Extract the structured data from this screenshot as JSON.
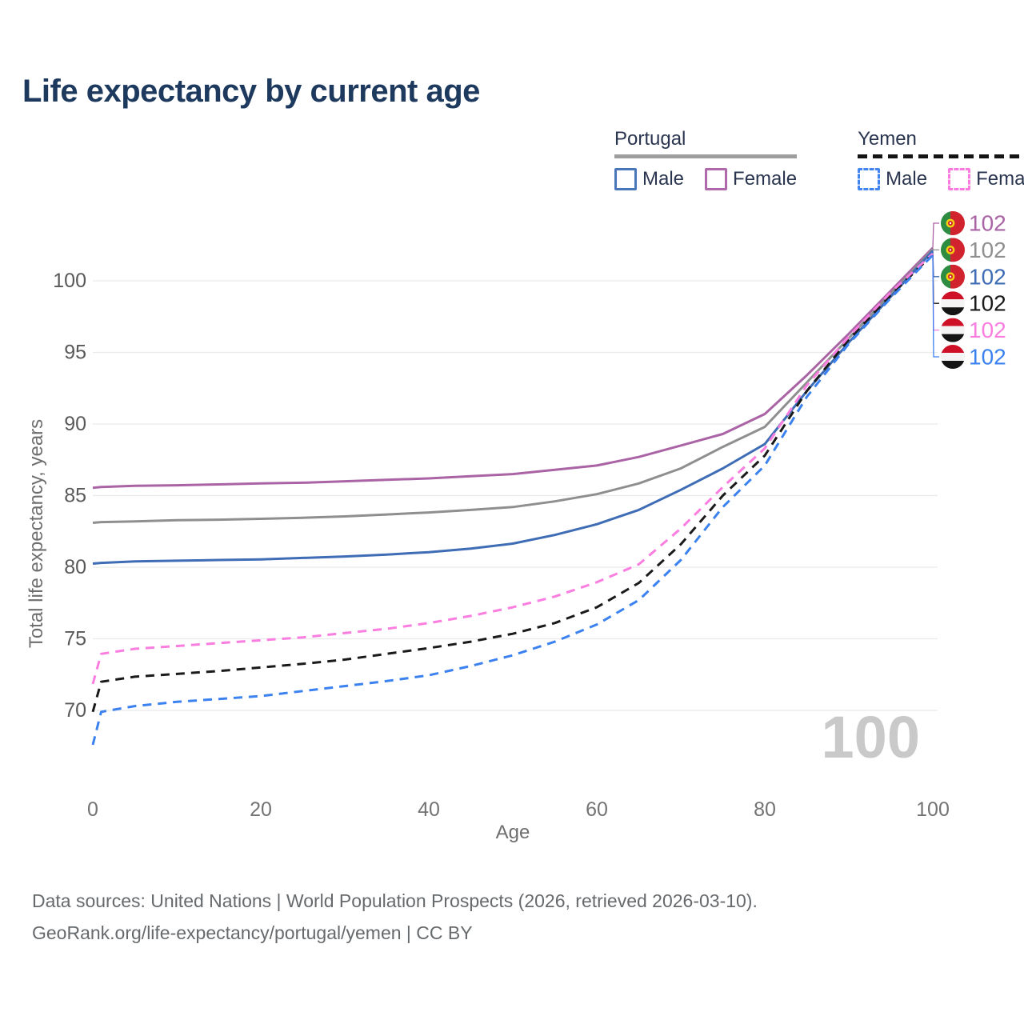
{
  "title": "Life expectancy by current age",
  "watermark": "100",
  "legend": {
    "groups": [
      {
        "label": "Portugal",
        "line_style": "solid",
        "underline_color": "#9e9e9e",
        "items": [
          {
            "label": "Male",
            "color": "#4a77b9",
            "dashed": false
          },
          {
            "label": "Female",
            "color": "#b069ab",
            "dashed": false
          }
        ]
      },
      {
        "label": "Yemen",
        "line_style": "dashed",
        "underline_color": "#141414",
        "items": [
          {
            "label": "Male",
            "color": "#4285f0",
            "dashed": true
          },
          {
            "label": "Female",
            "color": "#fb7ae0",
            "dashed": true
          }
        ]
      }
    ]
  },
  "chart_data": {
    "type": "line",
    "title": "Life expectancy by current age",
    "xlabel": "Age",
    "ylabel": "Total life expectancy, years",
    "xlim": [
      0,
      100
    ],
    "ylim": [
      67,
      103
    ],
    "x_ticks": [
      0,
      20,
      40,
      60,
      80,
      100
    ],
    "y_ticks": [
      70,
      75,
      80,
      85,
      90,
      95,
      100
    ],
    "grid": "horizontal-only",
    "legend_position": "top-right",
    "x": [
      0,
      1,
      5,
      10,
      15,
      20,
      25,
      30,
      35,
      40,
      45,
      50,
      55,
      60,
      65,
      70,
      75,
      80,
      85,
      90,
      95,
      100
    ],
    "series": [
      {
        "name": "Portugal Female",
        "country": "Portugal",
        "sex": "Female",
        "flag": "portugal",
        "color": "#aa63a5",
        "dash": false,
        "end_label": "102",
        "values": [
          85.55,
          85.6,
          85.68,
          85.72,
          85.78,
          85.85,
          85.9,
          86.0,
          86.1,
          86.2,
          86.35,
          86.5,
          86.8,
          87.1,
          87.7,
          88.5,
          89.3,
          90.7,
          93.4,
          96.3,
          99.3,
          102.3
        ]
      },
      {
        "name": "Portugal Both sexes",
        "country": "Portugal",
        "sex": "Both",
        "flag": "portugal",
        "color": "#8f8f8f",
        "dash": false,
        "end_label": "102",
        "values": [
          83.1,
          83.15,
          83.2,
          83.28,
          83.32,
          83.38,
          83.45,
          83.55,
          83.68,
          83.82,
          84.0,
          84.2,
          84.6,
          85.1,
          85.85,
          86.9,
          88.4,
          89.8,
          92.9,
          96.0,
          99.1,
          102.2
        ]
      },
      {
        "name": "Portugal Male",
        "country": "Portugal",
        "sex": "Male",
        "flag": "portugal",
        "color": "#3e6cb5",
        "dash": false,
        "end_label": "102",
        "values": [
          80.25,
          80.3,
          80.4,
          80.45,
          80.5,
          80.55,
          80.65,
          80.75,
          80.88,
          81.05,
          81.3,
          81.65,
          82.25,
          83.0,
          84.0,
          85.4,
          86.9,
          88.6,
          92.3,
          95.7,
          98.9,
          102.1
        ]
      },
      {
        "name": "Yemen Both sexes",
        "country": "Yemen",
        "sex": "Both",
        "flag": "yemen",
        "color": "#1a1a1a",
        "dash": true,
        "end_label": "102",
        "values": [
          69.9,
          72.0,
          72.35,
          72.55,
          72.75,
          73.0,
          73.25,
          73.55,
          73.95,
          74.35,
          74.8,
          75.35,
          76.1,
          77.2,
          78.9,
          81.6,
          85.0,
          87.8,
          92.3,
          95.9,
          99.0,
          101.85
        ]
      },
      {
        "name": "Yemen Female",
        "country": "Yemen",
        "sex": "Female",
        "flag": "yemen",
        "color": "#f97ee0",
        "dash": true,
        "end_label": "102",
        "values": [
          71.85,
          73.95,
          74.3,
          74.5,
          74.7,
          74.9,
          75.1,
          75.4,
          75.7,
          76.1,
          76.6,
          77.2,
          77.95,
          78.95,
          80.2,
          82.7,
          85.6,
          88.3,
          92.7,
          96.1,
          99.2,
          101.9
        ]
      },
      {
        "name": "Yemen Male",
        "country": "Yemen",
        "sex": "Male",
        "flag": "yemen",
        "color": "#3b82f0",
        "dash": true,
        "end_label": "102",
        "values": [
          67.6,
          69.9,
          70.3,
          70.6,
          70.8,
          71.0,
          71.35,
          71.7,
          72.05,
          72.45,
          73.1,
          73.85,
          74.8,
          76.0,
          77.7,
          80.5,
          84.2,
          87.1,
          91.9,
          95.6,
          98.8,
          101.8
        ]
      }
    ],
    "end_label_rows": [
      {
        "series": 0,
        "flag": "portugal",
        "value": "102"
      },
      {
        "series": 1,
        "flag": "portugal",
        "value": "102"
      },
      {
        "series": 2,
        "flag": "portugal",
        "value": "102"
      },
      {
        "series": 3,
        "flag": "yemen",
        "value": "102"
      },
      {
        "series": 4,
        "flag": "yemen",
        "value": "102"
      },
      {
        "series": 5,
        "flag": "yemen",
        "value": "102"
      }
    ]
  },
  "footer": {
    "line1": "Data sources: United Nations | World Population Prospects (2026, retrieved 2026-03-10).",
    "line2": "GeoRank.org/life-expectancy/portugal/yemen | CC BY"
  }
}
